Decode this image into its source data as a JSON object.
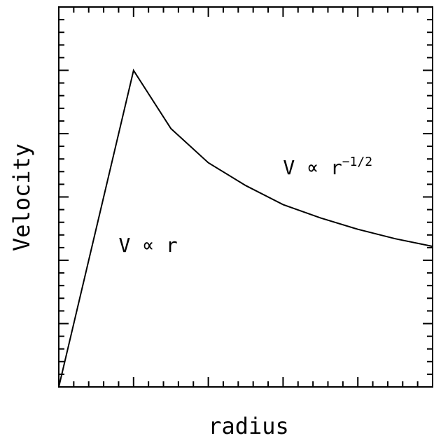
{
  "chart_data": {
    "type": "line",
    "xlabel": "radius",
    "ylabel": "Velocity",
    "xlim": [
      0,
      1
    ],
    "ylim": [
      0,
      1
    ],
    "grid": false,
    "x_tick_labels": false,
    "y_tick_labels": false,
    "series": [
      {
        "x": [
          0.0,
          0.2,
          0.3,
          0.4,
          0.5,
          0.6,
          0.7,
          0.8,
          0.9,
          1.0
        ],
        "y": [
          0.0,
          0.833,
          0.68,
          0.59,
          0.53,
          0.48,
          0.445,
          0.415,
          0.39,
          0.37
        ]
      }
    ],
    "annotations": [
      {
        "text": "V ∝ r",
        "x": 0.16,
        "y": 0.355
      },
      {
        "text": "V ∝ r",
        "superscript": "−1/2",
        "x": 0.6,
        "y": 0.56
      }
    ]
  },
  "style": {
    "line_color": "#000000",
    "axis_color": "#000000"
  }
}
